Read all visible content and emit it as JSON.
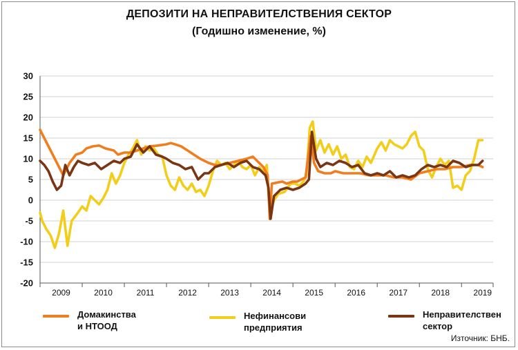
{
  "chart_data": {
    "type": "line",
    "title": "ДЕПОЗИТИ НА НЕПРАВИТЕЛСТВЕНИЯ СЕКТОР",
    "subtitle": "(Годишно изменение, %)",
    "ylim": [
      -20,
      30
    ],
    "yticks": [
      30,
      25,
      20,
      15,
      10,
      5,
      0,
      -5,
      -10,
      -15,
      -20
    ],
    "xlim": [
      2009.0,
      2019.75
    ],
    "year_labels": [
      "2009",
      "2010",
      "2011",
      "2012",
      "2013",
      "2014",
      "2015",
      "2016",
      "2017",
      "2018",
      "2019"
    ],
    "grid": "horizontal",
    "legend_position": "bottom",
    "source": "Източник: БНБ.",
    "series": [
      {
        "name": "Домакинства\nи НТООД",
        "color": "#F07D1E",
        "x": [
          2009.0,
          2009.1,
          2009.25,
          2009.45,
          2009.55,
          2009.7,
          2009.85,
          2010.0,
          2010.1,
          2010.25,
          2010.4,
          2010.55,
          2010.75,
          2010.85,
          2011.0,
          2011.15,
          2011.3,
          2011.45,
          2011.6,
          2011.8,
          2012.0,
          2012.1,
          2012.2,
          2012.35,
          2012.5,
          2012.65,
          2012.8,
          2013.0,
          2013.15,
          2013.3,
          2013.5,
          2013.7,
          2013.9,
          2014.05,
          2014.2,
          2014.3,
          2014.4,
          2014.45,
          2014.5,
          2014.6,
          2014.75,
          2014.85,
          2015.0,
          2015.1,
          2015.2,
          2015.3,
          2015.42,
          2015.5,
          2015.6,
          2015.75,
          2015.9,
          2016.0,
          2016.2,
          2016.4,
          2016.6,
          2016.8,
          2017.0,
          2017.2,
          2017.4,
          2017.6,
          2017.8,
          2018.0,
          2018.2,
          2018.4,
          2018.6,
          2018.8,
          2019.0,
          2019.2,
          2019.4,
          2019.5
        ],
        "values": [
          17.0,
          15.0,
          12.0,
          8.0,
          6.0,
          9.0,
          11.0,
          11.5,
          12.5,
          13.0,
          13.2,
          12.5,
          12.0,
          11.0,
          11.5,
          11.5,
          12.0,
          12.5,
          13.0,
          13.2,
          13.5,
          13.8,
          13.5,
          13.0,
          12.0,
          11.0,
          10.0,
          9.0,
          8.5,
          8.5,
          9.0,
          9.5,
          10.0,
          10.5,
          9.0,
          8.0,
          6.0,
          -4.5,
          4.0,
          4.2,
          4.5,
          4.0,
          4.5,
          4.5,
          5.0,
          5.5,
          15.5,
          9.0,
          7.0,
          6.5,
          6.5,
          7.0,
          6.5,
          6.5,
          6.5,
          6.0,
          6.0,
          6.0,
          5.5,
          5.5,
          5.0,
          6.5,
          7.0,
          7.5,
          7.5,
          8.0,
          8.0,
          8.5,
          8.5,
          8.0
        ]
      },
      {
        "name": "Нефинансови\nпредприятия",
        "color": "#F2CE1B",
        "x": [
          2009.0,
          2009.05,
          2009.15,
          2009.25,
          2009.35,
          2009.45,
          2009.55,
          2009.65,
          2009.75,
          2009.9,
          2010.0,
          2010.1,
          2010.2,
          2010.3,
          2010.4,
          2010.5,
          2010.6,
          2010.7,
          2010.8,
          2010.9,
          2011.0,
          2011.1,
          2011.2,
          2011.3,
          2011.4,
          2011.5,
          2011.6,
          2011.7,
          2011.8,
          2011.9,
          2012.0,
          2012.1,
          2012.2,
          2012.3,
          2012.4,
          2012.5,
          2012.6,
          2012.7,
          2012.8,
          2012.9,
          2013.0,
          2013.1,
          2013.2,
          2013.3,
          2013.4,
          2013.5,
          2013.6,
          2013.7,
          2013.8,
          2013.9,
          2014.0,
          2014.1,
          2014.2,
          2014.3,
          2014.38,
          2014.45,
          2014.55,
          2014.65,
          2014.8,
          2014.95,
          2015.05,
          2015.15,
          2015.25,
          2015.32,
          2015.4,
          2015.47,
          2015.55,
          2015.65,
          2015.75,
          2015.85,
          2015.95,
          2016.05,
          2016.15,
          2016.25,
          2016.35,
          2016.45,
          2016.55,
          2016.65,
          2016.75,
          2016.85,
          2017.0,
          2017.1,
          2017.2,
          2017.3,
          2017.4,
          2017.5,
          2017.6,
          2017.7,
          2017.8,
          2017.9,
          2018.0,
          2018.1,
          2018.2,
          2018.3,
          2018.4,
          2018.5,
          2018.6,
          2018.7,
          2018.8,
          2018.9,
          2019.0,
          2019.1,
          2019.2,
          2019.3,
          2019.4,
          2019.5
        ],
        "values": [
          -3.0,
          -5.0,
          -7.0,
          -8.5,
          -11.5,
          -8.0,
          -2.5,
          -11.0,
          -5.0,
          -3.0,
          -1.5,
          -2.5,
          1.0,
          0.0,
          -1.0,
          0.5,
          2.5,
          6.5,
          4.0,
          6.0,
          9.0,
          11.0,
          12.5,
          14.5,
          11.0,
          13.0,
          12.0,
          12.5,
          11.0,
          10.5,
          6.0,
          3.5,
          2.5,
          5.5,
          3.5,
          2.5,
          4.0,
          2.0,
          2.5,
          1.0,
          3.5,
          7.0,
          9.5,
          8.5,
          9.0,
          7.5,
          8.5,
          9.5,
          8.0,
          7.5,
          8.5,
          6.0,
          8.0,
          7.0,
          8.5,
          -3.0,
          0.0,
          1.5,
          2.0,
          4.0,
          4.0,
          3.5,
          4.5,
          6.0,
          17.5,
          19.0,
          12.0,
          14.5,
          11.5,
          13.5,
          11.0,
          13.0,
          10.0,
          11.0,
          8.0,
          7.5,
          9.5,
          8.0,
          10.5,
          9.0,
          12.5,
          14.0,
          12.0,
          14.5,
          13.5,
          13.0,
          12.5,
          13.5,
          15.5,
          16.5,
          13.0,
          12.0,
          7.5,
          5.5,
          8.0,
          10.0,
          8.5,
          9.5,
          3.0,
          3.5,
          2.5,
          6.0,
          7.0,
          10.0,
          14.5,
          14.5
        ]
      },
      {
        "name": "Неправителствен\nсектор",
        "color": "#7A3512",
        "x": [
          2009.0,
          2009.1,
          2009.2,
          2009.3,
          2009.4,
          2009.5,
          2009.6,
          2009.7,
          2009.8,
          2009.9,
          2010.0,
          2010.15,
          2010.3,
          2010.45,
          2010.6,
          2010.75,
          2010.9,
          2011.0,
          2011.15,
          2011.3,
          2011.45,
          2011.6,
          2011.75,
          2011.9,
          2012.0,
          2012.15,
          2012.3,
          2012.45,
          2012.6,
          2012.75,
          2012.9,
          2013.0,
          2013.15,
          2013.3,
          2013.45,
          2013.6,
          2013.75,
          2013.9,
          2014.05,
          2014.2,
          2014.35,
          2014.42,
          2014.47,
          2014.55,
          2014.7,
          2014.85,
          2015.0,
          2015.15,
          2015.3,
          2015.38,
          2015.45,
          2015.55,
          2015.65,
          2015.8,
          2015.95,
          2016.1,
          2016.25,
          2016.4,
          2016.55,
          2016.7,
          2016.85,
          2017.0,
          2017.15,
          2017.3,
          2017.45,
          2017.6,
          2017.75,
          2017.9,
          2018.05,
          2018.2,
          2018.35,
          2018.5,
          2018.65,
          2018.8,
          2018.95,
          2019.1,
          2019.25,
          2019.4,
          2019.5
        ],
        "values": [
          9.5,
          8.5,
          7.0,
          4.5,
          2.5,
          3.5,
          8.5,
          6.0,
          8.0,
          9.5,
          9.0,
          8.5,
          9.0,
          7.5,
          8.5,
          9.5,
          9.0,
          10.0,
          10.5,
          13.5,
          11.5,
          13.0,
          11.0,
          10.5,
          10.0,
          9.0,
          8.5,
          7.5,
          8.0,
          5.0,
          6.5,
          6.5,
          8.0,
          8.5,
          9.0,
          8.0,
          9.0,
          9.5,
          8.0,
          7.5,
          6.0,
          3.0,
          -4.5,
          1.0,
          2.5,
          3.0,
          2.5,
          3.0,
          4.0,
          5.0,
          16.5,
          10.0,
          8.0,
          9.0,
          8.5,
          9.5,
          9.0,
          8.0,
          8.5,
          6.5,
          6.0,
          6.5,
          6.0,
          7.0,
          5.5,
          6.0,
          5.5,
          6.0,
          7.5,
          8.5,
          8.0,
          8.5,
          8.0,
          9.5,
          9.0,
          8.0,
          8.5,
          8.5,
          9.5
        ]
      }
    ]
  }
}
